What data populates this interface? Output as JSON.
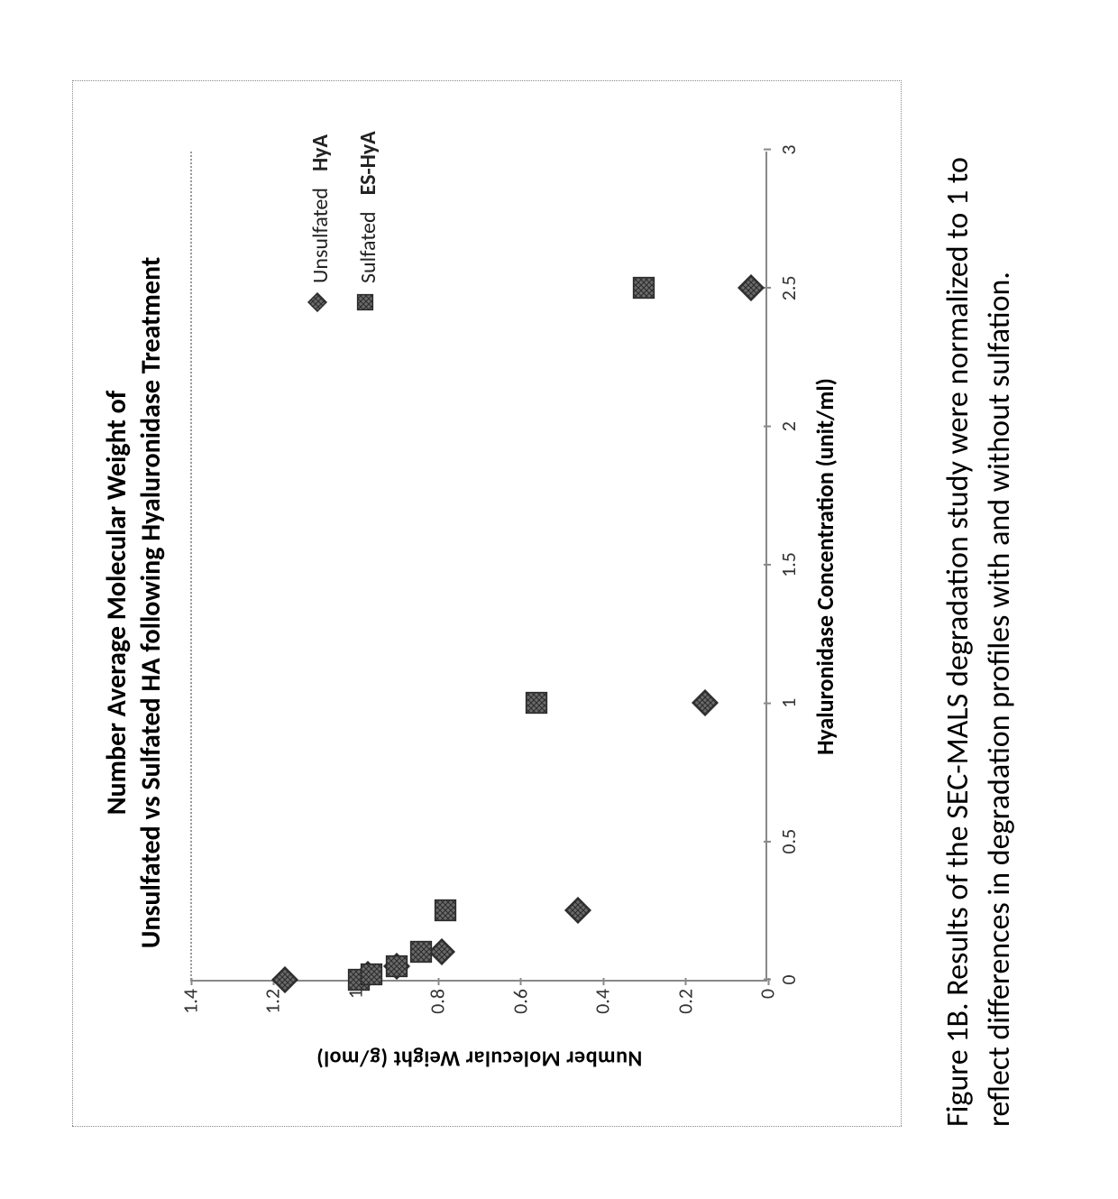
{
  "chart": {
    "type": "scatter",
    "title_line1": "Number Average Molecular Weight of",
    "title_line2": "Unsulfated vs Sulfated HA following Hyaluronidase Treatment",
    "title_fontsize": 30,
    "xlabel": "Hyaluronidase Concentration (unit/ml)",
    "ylabel": "Number Molecular Weight (g/mol)",
    "label_fontsize": 26,
    "tick_fontsize": 22,
    "xlim": [
      0,
      3
    ],
    "ylim": [
      0,
      1.4
    ],
    "xticks": [
      0,
      0.5,
      1,
      1.5,
      2,
      2.5,
      3
    ],
    "yticks": [
      0,
      0.2,
      0.4,
      0.6,
      0.8,
      1,
      1.2,
      1.4
    ],
    "tick_color": "#888888",
    "axis_color": "#888888",
    "dotted_top_line_color": "#999999",
    "background_color": "#ffffff",
    "frame_border_color": "#888888",
    "series": [
      {
        "name": "Unsulfated",
        "bold_label": "HyA",
        "marker": "diamond",
        "marker_size": 30,
        "fill_color": "#555555",
        "stroke_color": "#2b2b2b",
        "hatch": "cross",
        "points": [
          {
            "x": 0.0,
            "y": 1.17
          },
          {
            "x": 0.02,
            "y": 0.97
          },
          {
            "x": 0.05,
            "y": 0.9
          },
          {
            "x": 0.1,
            "y": 0.79
          },
          {
            "x": 0.25,
            "y": 0.46
          },
          {
            "x": 1.0,
            "y": 0.15
          },
          {
            "x": 2.5,
            "y": 0.04
          }
        ]
      },
      {
        "name": "Sulfated",
        "bold_label": "ES-HyA",
        "marker": "square",
        "marker_size": 30,
        "fill_color": "#555555",
        "stroke_color": "#2b2b2b",
        "hatch": "cross",
        "points": [
          {
            "x": 0.0,
            "y": 0.99
          },
          {
            "x": 0.02,
            "y": 0.96
          },
          {
            "x": 0.05,
            "y": 0.9
          },
          {
            "x": 0.1,
            "y": 0.84
          },
          {
            "x": 0.25,
            "y": 0.78
          },
          {
            "x": 1.0,
            "y": 0.56
          },
          {
            "x": 2.5,
            "y": 0.3
          }
        ]
      }
    ],
    "legend": {
      "position": "inside-top-right",
      "fontsize": 24
    }
  },
  "caption": "Figure 1B. Results of the SEC-MALS degradation study were normalized to 1 to reflect differences in degradation profiles with and without sulfation."
}
